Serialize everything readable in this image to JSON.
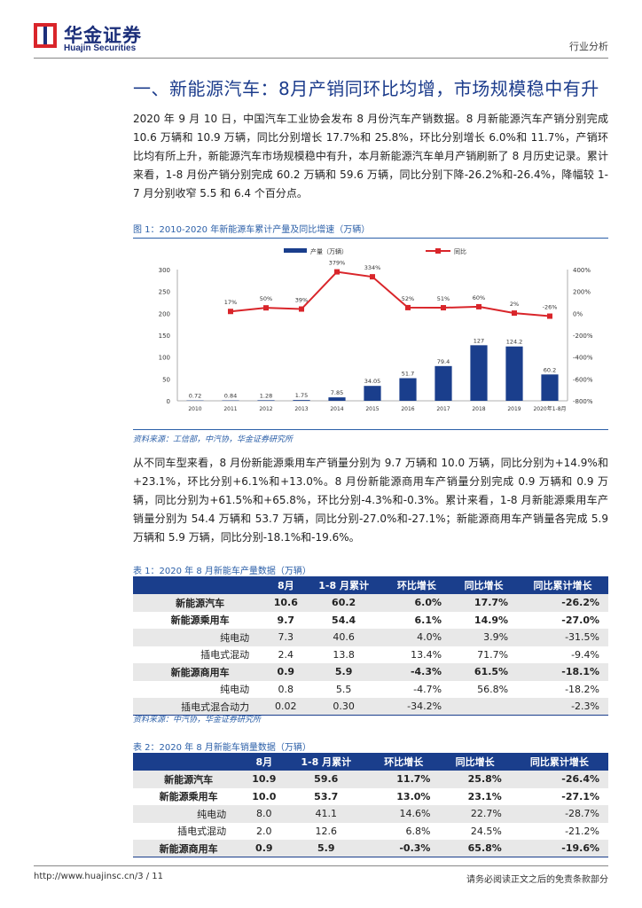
{
  "header": {
    "logo_cn": "华金证券",
    "logo_en": "Huajin Securities",
    "category": "行业分析"
  },
  "section_title": "一、新能源汽车：8月产销同环比均增，市场规模稳中有升",
  "para1": "2020 年 9 月 10 日，中国汽车工业协会发布 8 月份汽车产销数据。8 月新能源汽车产销分别完成 10.6 万辆和 10.9 万辆，同比分别增长 17.7%和 25.8%，环比分别增长 6.0%和 11.7%，产销环比均有所上升，新能源汽车市场规模稳中有升，本月新能源汽车单月产销刷新了 8 月历史记录。累计来看，1-8 月份产销分别完成 60.2 万辆和 59.6 万辆，同比分别下降-26.2%和-26.4%，降幅较 1-7 月分别收窄 5.5 和 6.4 个百分点。",
  "figure": {
    "title": "图 1：2010-2020 年新能源车累计产量及同比增速（万辆）",
    "source": "资料来源：工信部，中汽协，华金证券研究所"
  },
  "chart_data": {
    "type": "bar+line",
    "categories": [
      "2010",
      "2011",
      "2012",
      "2013",
      "2014",
      "2015",
      "2016",
      "2017",
      "2018",
      "2019",
      "2020年1-8月"
    ],
    "series": [
      {
        "name": "产量（万辆）",
        "type": "bar",
        "axis": "left",
        "values": [
          0.72,
          0.84,
          1.28,
          1.75,
          7.85,
          34.05,
          51.7,
          79.4,
          127,
          124.2,
          60.2
        ],
        "labels": [
          "0.72",
          "0.84",
          "1.28",
          "1.75",
          "7.85",
          "34.05",
          "51.7",
          "79.4",
          "127",
          "124.2",
          "60.2"
        ]
      },
      {
        "name": "同比",
        "type": "line",
        "axis": "right",
        "values": [
          null,
          17,
          50,
          39,
          379,
          334,
          52,
          51,
          60,
          2,
          -26
        ],
        "labels": [
          "",
          "17%",
          "50%",
          "39%",
          "379%",
          "334%",
          "52%",
          "51%",
          "60%",
          "2%",
          "-26%"
        ]
      }
    ],
    "left_axis": {
      "min": 0,
      "max": 300,
      "ticks": [
        "0",
        "50",
        "100",
        "150",
        "200",
        "250",
        "300"
      ]
    },
    "right_axis": {
      "min": -800,
      "max": 400,
      "ticks": [
        "-800%",
        "-600%",
        "-400%",
        "-200%",
        "0%",
        "200%",
        "400%"
      ]
    },
    "legend_position": "top",
    "colors": {
      "bar": "#1a3e8c",
      "line": "#d9252a"
    }
  },
  "para2": "从不同车型来看，8 月份新能源乘用车产销量分别为 9.7 万辆和 10.0 万辆，同比分别为+14.9%和+23.1%，环比分别+6.1%和+13.0%。8 月份新能源商用车产销量分别完成 0.9 万辆和 0.9 万辆，同比分别为+61.5%和+65.8%，环比分别-4.3%和-0.3%。累计来看，1-8 月新能源乘用车产销量分别为 54.4 万辆和 53.7 万辆，同比分别-27.0%和-27.1%；新能源商用车产销量各完成 5.9 万辆和 5.9 万辆，同比分别-18.1%和-19.6%。",
  "table1": {
    "title": "表 1：2020 年 8 月新能车产量数据（万辆）",
    "headers": [
      "",
      "8月",
      "1-8 月累计",
      "环比增长",
      "同比增长",
      "同比累计增长"
    ],
    "rows": [
      {
        "name": "新能源汽车",
        "bold": true,
        "cells": [
          "10.6",
          "60.2",
          "6.0%",
          "17.7%",
          "-26.2%"
        ]
      },
      {
        "name": "新能源乘用车",
        "bold": true,
        "cells": [
          "9.7",
          "54.4",
          "6.1%",
          "14.9%",
          "-27.0%"
        ]
      },
      {
        "name": "纯电动",
        "bold": false,
        "cells": [
          "7.3",
          "40.6",
          "4.0%",
          "3.9%",
          "-31.5%"
        ]
      },
      {
        "name": "插电式混动",
        "bold": false,
        "cells": [
          "2.4",
          "13.8",
          "13.4%",
          "71.7%",
          "-9.4%"
        ]
      },
      {
        "name": "新能源商用车",
        "bold": true,
        "cells": [
          "0.9",
          "5.9",
          "-4.3%",
          "61.5%",
          "-18.1%"
        ]
      },
      {
        "name": "纯电动",
        "bold": false,
        "cells": [
          "0.8",
          "5.5",
          "-4.7%",
          "56.8%",
          "-18.2%"
        ]
      },
      {
        "name": "插电式混合动力",
        "bold": false,
        "cells": [
          "0.02",
          "0.30",
          "-34.2%",
          "",
          "-2.3%"
        ]
      }
    ],
    "source": "资料来源：中汽协，华金证券研究所"
  },
  "table2": {
    "title": "表 2：2020 年 8 月新能车销量数据（万辆）",
    "headers": [
      "",
      "8月",
      "1-8 月累计",
      "环比增长",
      "同比增长",
      "同比累计增长"
    ],
    "rows": [
      {
        "name": "新能源汽车",
        "bold": true,
        "cells": [
          "10.9",
          "59.6",
          "11.7%",
          "25.8%",
          "-26.4%"
        ]
      },
      {
        "name": "新能源乘用车",
        "bold": true,
        "cells": [
          "10.0",
          "53.7",
          "13.0%",
          "23.1%",
          "-27.1%"
        ]
      },
      {
        "name": "纯电动",
        "bold": false,
        "cells": [
          "8.0",
          "41.1",
          "14.6%",
          "22.7%",
          "-28.7%"
        ]
      },
      {
        "name": "插电式混动",
        "bold": false,
        "cells": [
          "2.0",
          "12.6",
          "6.8%",
          "24.5%",
          "-21.2%"
        ]
      },
      {
        "name": "新能源商用车",
        "bold": true,
        "cells": [
          "0.9",
          "5.9",
          "-0.3%",
          "65.8%",
          "-19.6%"
        ]
      }
    ]
  },
  "footer": {
    "left": "http://www.huajinsc.cn/3 / 11",
    "right": "请务必阅读正文之后的免责条款部分"
  }
}
